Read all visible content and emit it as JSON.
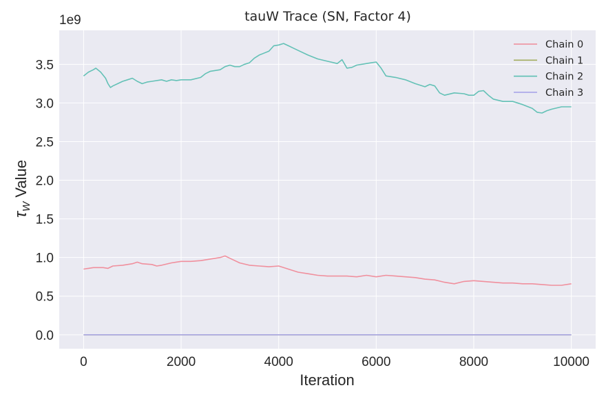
{
  "chart_data": {
    "type": "line",
    "title": "tauW Trace (SN, Factor 4)",
    "xlabel": "Iteration",
    "ylabel_symbol": "τ",
    "ylabel_subscript": "W",
    "ylabel_suffix": " Value",
    "y_offset_label": "1e9",
    "xlim": [
      -500,
      10500
    ],
    "ylim": [
      -0.18,
      3.94
    ],
    "x_ticks": [
      0,
      2000,
      4000,
      6000,
      8000,
      10000
    ],
    "x_tick_labels": [
      "0",
      "2000",
      "4000",
      "6000",
      "8000",
      "10000"
    ],
    "y_ticks": [
      0,
      0.5,
      1.0,
      1.5,
      2.0,
      2.5,
      3.0,
      3.5
    ],
    "y_tick_labels": [
      "0.0",
      "0.5",
      "1.0",
      "1.5",
      "2.0",
      "2.5",
      "3.0",
      "3.5"
    ],
    "grid": true,
    "legend_position": "top-right",
    "background_color": "#eaeaf2",
    "series": [
      {
        "name": "Chain 0",
        "color": "#f08a98",
        "x": [
          0,
          200,
          400,
          500,
          600,
          800,
          1000,
          1100,
          1200,
          1400,
          1500,
          1600,
          1800,
          2000,
          2200,
          2400,
          2600,
          2800,
          2900,
          3000,
          3200,
          3400,
          3600,
          3800,
          4000,
          4200,
          4400,
          4600,
          4800,
          5000,
          5200,
          5400,
          5600,
          5800,
          6000,
          6200,
          6400,
          6600,
          6800,
          7000,
          7200,
          7400,
          7600,
          7800,
          8000,
          8200,
          8400,
          8600,
          8800,
          9000,
          9200,
          9400,
          9600,
          9800,
          10000
        ],
        "values": [
          0.85,
          0.87,
          0.87,
          0.86,
          0.89,
          0.9,
          0.92,
          0.94,
          0.92,
          0.91,
          0.89,
          0.9,
          0.93,
          0.95,
          0.95,
          0.96,
          0.98,
          1.0,
          1.02,
          0.99,
          0.93,
          0.9,
          0.89,
          0.88,
          0.89,
          0.85,
          0.81,
          0.79,
          0.77,
          0.76,
          0.76,
          0.76,
          0.75,
          0.77,
          0.75,
          0.77,
          0.76,
          0.75,
          0.74,
          0.72,
          0.71,
          0.68,
          0.66,
          0.69,
          0.7,
          0.69,
          0.68,
          0.67,
          0.67,
          0.66,
          0.66,
          0.65,
          0.64,
          0.64,
          0.66
        ]
      },
      {
        "name": "Chain 1",
        "color": "#a3ad5f",
        "x": [
          0,
          10000
        ],
        "values": [
          0.0,
          0.0
        ]
      },
      {
        "name": "Chain 2",
        "color": "#5cbfb2",
        "x": [
          0,
          100,
          200,
          250,
          350,
          450,
          500,
          550,
          600,
          700,
          800,
          900,
          1000,
          1100,
          1200,
          1300,
          1400,
          1600,
          1700,
          1800,
          1900,
          2000,
          2200,
          2400,
          2500,
          2600,
          2800,
          2900,
          3000,
          3100,
          3200,
          3300,
          3400,
          3500,
          3600,
          3800,
          3900,
          4000,
          4100,
          4200,
          4300,
          4400,
          4600,
          4800,
          5000,
          5200,
          5300,
          5400,
          5500,
          5600,
          5800,
          5900,
          6000,
          6100,
          6200,
          6300,
          6400,
          6600,
          6800,
          7000,
          7100,
          7200,
          7300,
          7400,
          7600,
          7800,
          7900,
          8000,
          8100,
          8200,
          8300,
          8400,
          8600,
          8800,
          9000,
          9200,
          9300,
          9400,
          9500,
          9600,
          9800,
          10000
        ],
        "values": [
          3.35,
          3.4,
          3.43,
          3.45,
          3.4,
          3.32,
          3.25,
          3.2,
          3.22,
          3.25,
          3.28,
          3.3,
          3.32,
          3.28,
          3.25,
          3.27,
          3.28,
          3.3,
          3.28,
          3.3,
          3.29,
          3.3,
          3.3,
          3.33,
          3.38,
          3.41,
          3.43,
          3.47,
          3.49,
          3.47,
          3.47,
          3.5,
          3.52,
          3.58,
          3.62,
          3.67,
          3.74,
          3.75,
          3.77,
          3.74,
          3.71,
          3.68,
          3.62,
          3.57,
          3.54,
          3.51,
          3.56,
          3.45,
          3.46,
          3.49,
          3.51,
          3.52,
          3.53,
          3.45,
          3.35,
          3.34,
          3.33,
          3.3,
          3.25,
          3.21,
          3.24,
          3.22,
          3.13,
          3.1,
          3.13,
          3.12,
          3.1,
          3.1,
          3.15,
          3.16,
          3.1,
          3.05,
          3.02,
          3.02,
          2.98,
          2.93,
          2.88,
          2.87,
          2.9,
          2.92,
          2.95,
          2.95
        ]
      },
      {
        "name": "Chain 3",
        "color": "#a8a4e8",
        "x": [
          0,
          10000
        ],
        "values": [
          0.0,
          0.0
        ]
      }
    ]
  }
}
